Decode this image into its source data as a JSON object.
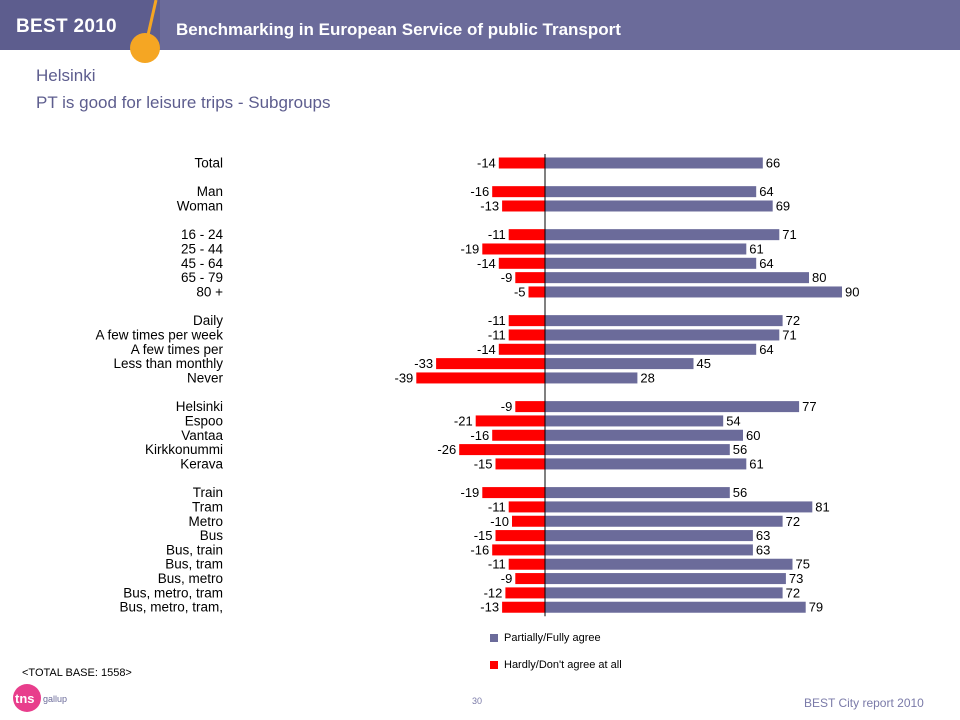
{
  "header": {
    "brand": "BEST 2010",
    "title": "Benchmarking in European Service of public Transport"
  },
  "page": {
    "title": "Helsinki",
    "subtitle": "PT is good for leisure trips - Subgroups"
  },
  "colors": {
    "agree": "#6b6b9a",
    "disagree": "#ff0000",
    "banner": "#6b6b9a",
    "accent": "#f5a623"
  },
  "chart_data": {
    "type": "bar",
    "orientation": "horizontal-diverging",
    "categories": [
      "Total",
      "Man",
      "Woman",
      "16 - 24",
      "25 - 44",
      "45 - 64",
      "65 - 79",
      "80 +",
      "Daily",
      "A few times per week",
      "A few times per",
      "Less than monthly",
      "Never",
      "Helsinki",
      "Espoo",
      "Vantaa",
      "Kirkkonummi",
      "Kerava",
      "Train",
      "Tram",
      "Metro",
      "Bus",
      "Bus, train",
      "Bus, tram",
      "Bus, metro",
      "Bus, metro, tram",
      "Bus, metro, tram,"
    ],
    "groups": [
      [
        0
      ],
      [
        1,
        2
      ],
      [
        3,
        4,
        5,
        6,
        7
      ],
      [
        8,
        9,
        10,
        11,
        12
      ],
      [
        13,
        14,
        15,
        16,
        17
      ],
      [
        18,
        19,
        20,
        21,
        22,
        23,
        24,
        25,
        26
      ]
    ],
    "series": [
      {
        "name": "Partially/Fully agree",
        "color": "#6b6b9a",
        "values": [
          66,
          64,
          69,
          71,
          61,
          64,
          80,
          90,
          72,
          71,
          64,
          45,
          28,
          77,
          54,
          60,
          56,
          61,
          56,
          81,
          72,
          63,
          63,
          75,
          73,
          72,
          79
        ]
      },
      {
        "name": "Hardly/Don't agree at all",
        "color": "#ff0000",
        "values": [
          -14,
          -16,
          -13,
          -11,
          -19,
          -14,
          -9,
          -5,
          -11,
          -11,
          -14,
          -33,
          -39,
          -9,
          -21,
          -16,
          -26,
          -15,
          -19,
          -11,
          -10,
          -15,
          -16,
          -11,
          -9,
          -12,
          -13
        ]
      }
    ],
    "legend_position": "bottom-center"
  },
  "footer": {
    "total_base": "<TOTAL BASE: 1558>",
    "page_number": "30",
    "report_label": "BEST City report 2010"
  },
  "logo": {
    "text_main": "tns",
    "text_sub": "gallup"
  }
}
